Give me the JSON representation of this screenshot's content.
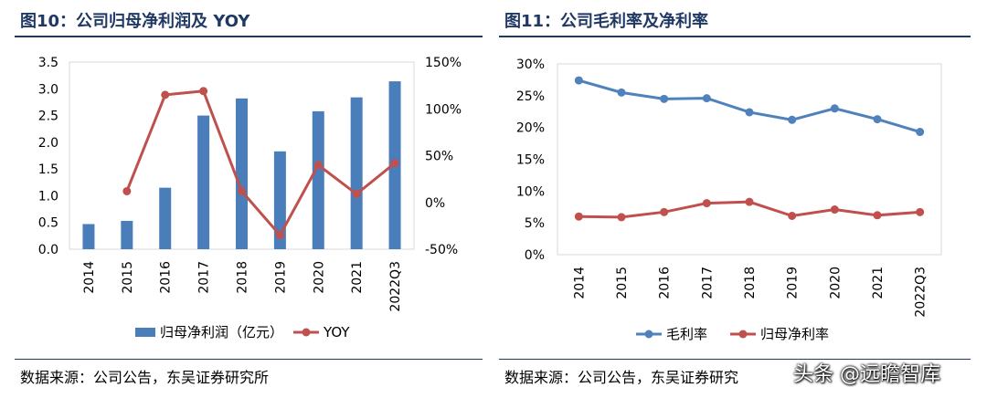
{
  "left_panel": {
    "title": "图10：公司归母净利润及 YOY",
    "source": "数据来源：公司公告，东吴证券研究所"
  },
  "right_panel": {
    "title": "图11：公司毛利率及净利率",
    "source": "数据来源：公司公告，东吴证券研究"
  },
  "watermark": "头条 @远瞻智库",
  "colors": {
    "bar": "#4a7ebb",
    "yoy": "#c0504d",
    "gross": "#4f81bd",
    "net": "#c0504d",
    "title": "#1f3864"
  },
  "chart_data": [
    {
      "type": "bar",
      "categories": [
        "2014",
        "2015",
        "2016",
        "2017",
        "2018",
        "2019",
        "2020",
        "2021",
        "2022Q3"
      ],
      "series": [
        {
          "name": "归母净利润（亿元）",
          "type": "bar",
          "axis": "left",
          "values": [
            0.47,
            0.53,
            1.15,
            2.5,
            2.82,
            1.83,
            2.58,
            2.84,
            3.14
          ]
        },
        {
          "name": "YOY",
          "type": "line",
          "axis": "right",
          "values": [
            null,
            12,
            115,
            119,
            12,
            -35,
            40,
            9,
            42
          ]
        }
      ],
      "ylim_left": [
        0,
        3.5
      ],
      "yticks_left": [
        "0.0",
        "0.5",
        "1.0",
        "1.5",
        "2.0",
        "2.5",
        "3.0",
        "3.5"
      ],
      "ylim_right": [
        -50,
        150
      ],
      "yticks_right": [
        "-50%",
        "0%",
        "50%",
        "100%",
        "150%"
      ],
      "legend_position": "bottom"
    },
    {
      "type": "line",
      "categories": [
        "2014",
        "2015",
        "2016",
        "2017",
        "2018",
        "2019",
        "2020",
        "2021",
        "2022Q3"
      ],
      "series": [
        {
          "name": "毛利率",
          "values": [
            27.4,
            25.5,
            24.5,
            24.6,
            22.4,
            21.2,
            23.0,
            21.3,
            19.3
          ]
        },
        {
          "name": "归母净利率",
          "values": [
            6.0,
            5.9,
            6.7,
            8.1,
            8.3,
            6.1,
            7.1,
            6.2,
            6.7
          ]
        }
      ],
      "ylim": [
        0,
        30
      ],
      "yticks": [
        "0%",
        "5%",
        "10%",
        "15%",
        "20%",
        "25%",
        "30%"
      ],
      "legend_position": "bottom"
    }
  ]
}
